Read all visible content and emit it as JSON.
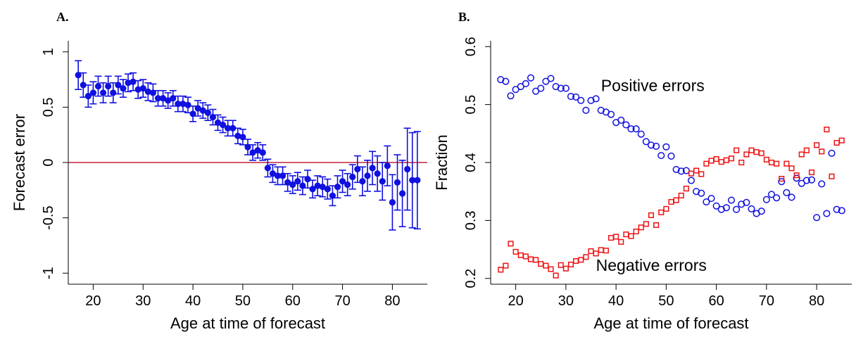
{
  "panels": {
    "a_letter": "A.",
    "b_letter": "B."
  },
  "colors": {
    "points": "#1010e0",
    "zero_line": "#c0203a",
    "negative": "#ee1111",
    "axis": "#000000"
  },
  "chart_data": [
    {
      "type": "scatter",
      "panel": "A.",
      "xlabel": "Age at time of forecast",
      "ylabel": "Forecast error",
      "xlim": [
        15,
        87
      ],
      "ylim": [
        -1.1,
        1.1
      ],
      "xticks": [
        20,
        30,
        40,
        50,
        60,
        70,
        80
      ],
      "yticks": [
        -1,
        -0.5,
        0,
        0.5,
        1
      ],
      "ytick_labels": [
        "-1",
        "-0.5",
        "0",
        "0.5",
        "1"
      ],
      "reference_line": 0,
      "grid": false,
      "x": [
        17,
        18,
        19,
        20,
        21,
        22,
        23,
        24,
        25,
        26,
        27,
        28,
        29,
        30,
        31,
        32,
        33,
        34,
        35,
        36,
        37,
        38,
        39,
        40,
        41,
        42,
        43,
        44,
        45,
        46,
        47,
        48,
        49,
        50,
        51,
        52,
        53,
        54,
        55,
        56,
        57,
        58,
        59,
        60,
        61,
        62,
        63,
        64,
        65,
        66,
        67,
        68,
        69,
        70,
        71,
        72,
        73,
        74,
        75,
        76,
        77,
        78,
        79,
        80,
        81,
        82,
        83,
        84,
        85
      ],
      "y": [
        0.79,
        0.7,
        0.6,
        0.63,
        0.69,
        0.63,
        0.69,
        0.63,
        0.7,
        0.67,
        0.72,
        0.73,
        0.66,
        0.67,
        0.64,
        0.63,
        0.58,
        0.58,
        0.56,
        0.58,
        0.53,
        0.53,
        0.52,
        0.44,
        0.49,
        0.47,
        0.45,
        0.41,
        0.36,
        0.34,
        0.31,
        0.31,
        0.24,
        0.23,
        0.14,
        0.09,
        0.11,
        0.09,
        -0.05,
        -0.1,
        -0.12,
        -0.12,
        -0.18,
        -0.2,
        -0.17,
        -0.21,
        -0.15,
        -0.24,
        -0.21,
        -0.22,
        -0.24,
        -0.3,
        -0.22,
        -0.17,
        -0.2,
        -0.13,
        -0.06,
        -0.17,
        -0.12,
        -0.05,
        -0.1,
        -0.17,
        -0.03,
        -0.36,
        -0.18,
        -0.28,
        -0.06,
        -0.16,
        -0.16
      ],
      "err": [
        0.13,
        0.11,
        0.1,
        0.1,
        0.09,
        0.09,
        0.09,
        0.09,
        0.08,
        0.08,
        0.08,
        0.08,
        0.08,
        0.08,
        0.08,
        0.08,
        0.07,
        0.07,
        0.07,
        0.07,
        0.07,
        0.07,
        0.07,
        0.07,
        0.07,
        0.07,
        0.07,
        0.07,
        0.07,
        0.07,
        0.07,
        0.07,
        0.07,
        0.07,
        0.07,
        0.07,
        0.07,
        0.07,
        0.08,
        0.08,
        0.08,
        0.08,
        0.08,
        0.08,
        0.08,
        0.08,
        0.08,
        0.08,
        0.09,
        0.09,
        0.09,
        0.09,
        0.1,
        0.1,
        0.1,
        0.11,
        0.12,
        0.13,
        0.14,
        0.15,
        0.16,
        0.17,
        0.18,
        0.25,
        0.25,
        0.3,
        0.37,
        0.43,
        0.44
      ]
    },
    {
      "type": "scatter",
      "panel": "B.",
      "xlabel": "Age at time of forecast",
      "ylabel": "Fraction",
      "xlim": [
        15,
        87
      ],
      "ylim": [
        0.19,
        0.61
      ],
      "xticks": [
        20,
        30,
        40,
        50,
        60,
        70,
        80
      ],
      "yticks": [
        0.2,
        0.3,
        0.4,
        0.5,
        0.6
      ],
      "ytick_labels": [
        "0.2",
        "0.3",
        "0.4",
        "0.5",
        "0.6"
      ],
      "grid": false,
      "series": [
        {
          "name": "Positive errors",
          "marker": "circle",
          "x": [
            17,
            18,
            19,
            20,
            21,
            22,
            23,
            24,
            25,
            26,
            27,
            28,
            29,
            30,
            31,
            32,
            33,
            34,
            35,
            36,
            37,
            38,
            39,
            40,
            41,
            42,
            43,
            44,
            45,
            46,
            47,
            48,
            49,
            50,
            51,
            52,
            53,
            54,
            55,
            56,
            57,
            58,
            59,
            60,
            61,
            62,
            63,
            64,
            65,
            66,
            67,
            68,
            69,
            70,
            71,
            72,
            73,
            74,
            75,
            76,
            77,
            78,
            79,
            80,
            81,
            82,
            83,
            84,
            85
          ],
          "y": [
            0.543,
            0.54,
            0.515,
            0.526,
            0.531,
            0.536,
            0.546,
            0.523,
            0.528,
            0.54,
            0.545,
            0.531,
            0.528,
            0.528,
            0.514,
            0.513,
            0.507,
            0.49,
            0.507,
            0.51,
            0.49,
            0.487,
            0.483,
            0.469,
            0.473,
            0.465,
            0.458,
            0.458,
            0.449,
            0.436,
            0.43,
            0.428,
            0.412,
            0.427,
            0.411,
            0.388,
            0.385,
            0.386,
            0.369,
            0.35,
            0.347,
            0.332,
            0.338,
            0.325,
            0.319,
            0.322,
            0.335,
            0.319,
            0.328,
            0.331,
            0.32,
            0.312,
            0.316,
            0.336,
            0.345,
            0.339,
            0.367,
            0.348,
            0.34,
            0.373,
            0.364,
            0.369,
            0.37,
            0.305,
            0.363,
            0.312,
            0.416,
            0.319,
            0.317
          ]
        },
        {
          "name": "Negative errors",
          "marker": "square",
          "x": [
            17,
            18,
            19,
            20,
            21,
            22,
            23,
            24,
            25,
            26,
            27,
            28,
            29,
            30,
            31,
            32,
            33,
            34,
            35,
            36,
            37,
            38,
            39,
            40,
            41,
            42,
            43,
            44,
            45,
            46,
            47,
            48,
            49,
            50,
            51,
            52,
            53,
            54,
            55,
            56,
            57,
            58,
            59,
            60,
            61,
            62,
            63,
            64,
            65,
            66,
            67,
            68,
            69,
            70,
            71,
            72,
            73,
            74,
            75,
            76,
            77,
            78,
            79,
            80,
            81,
            82,
            83,
            84,
            85
          ],
          "y": [
            0.215,
            0.222,
            0.26,
            0.246,
            0.24,
            0.238,
            0.233,
            0.232,
            0.225,
            0.222,
            0.216,
            0.205,
            0.223,
            0.217,
            0.224,
            0.23,
            0.232,
            0.237,
            0.247,
            0.243,
            0.249,
            0.248,
            0.27,
            0.272,
            0.263,
            0.276,
            0.273,
            0.281,
            0.288,
            0.294,
            0.309,
            0.292,
            0.314,
            0.32,
            0.332,
            0.335,
            0.343,
            0.355,
            0.381,
            0.386,
            0.38,
            0.398,
            0.403,
            0.406,
            0.401,
            0.404,
            0.407,
            0.421,
            0.4,
            0.414,
            0.421,
            0.418,
            0.416,
            0.405,
            0.4,
            0.398,
            0.372,
            0.398,
            0.39,
            0.378,
            0.414,
            0.421,
            0.383,
            0.43,
            0.419,
            0.457,
            0.376,
            0.434,
            0.438
          ]
        }
      ],
      "annotations": [
        {
          "text": "Positive errors",
          "x": 37,
          "y": 0.523
        },
        {
          "text": "Negative errors",
          "x": 36,
          "y": 0.213
        }
      ]
    }
  ]
}
